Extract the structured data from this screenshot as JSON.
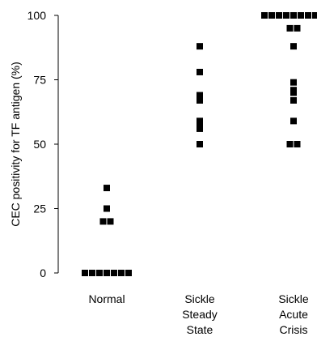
{
  "chart_data": {
    "type": "scatter",
    "title": "",
    "xlabel": "",
    "ylabel": "CEC positivity for TF antigen (%)",
    "ylim": [
      0,
      100
    ],
    "yticks": [
      0,
      25,
      50,
      75,
      100
    ],
    "grid": false,
    "legend": "none",
    "marker": "filled-square",
    "marker_color": "#000000",
    "categories": [
      [
        "Normal"
      ],
      [
        "Sickle",
        "Steady",
        "State"
      ],
      [
        "Sickle",
        "Acute",
        "Crisis"
      ]
    ],
    "groups": [
      {
        "category": "Normal",
        "values": [
          0,
          0,
          0,
          0,
          0,
          0,
          0,
          20,
          20,
          25,
          33
        ]
      },
      {
        "category": "Sickle Steady State",
        "values": [
          88,
          78,
          69,
          67,
          59,
          57,
          56,
          50
        ]
      },
      {
        "category": "Sickle Acute Crisis",
        "values": [
          100,
          100,
          100,
          100,
          100,
          100,
          100,
          100,
          100,
          95,
          95,
          88,
          74,
          71,
          70,
          67,
          59,
          50,
          50
        ]
      }
    ]
  }
}
